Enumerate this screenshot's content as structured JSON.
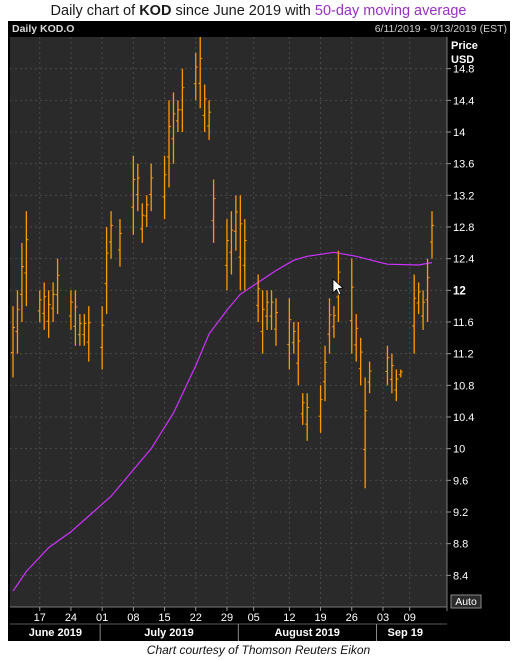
{
  "title": {
    "prefix": "Daily chart of ",
    "ticker": "KOD",
    "middle": " since June 2019 with ",
    "ma_label": "50-day moving average"
  },
  "header": {
    "instrument": "Daily KOD.O",
    "date_range": "6/11/2019 - 9/13/2019 (EST)"
  },
  "caption": "Chart courtesy of Thomson Reuters Eikon",
  "colors": {
    "bars": "#ff9900",
    "moving_average": "#cc33ff",
    "plot_background": "#2a2a2a",
    "frame": "#000000"
  },
  "chart_data": {
    "type": "ohlc",
    "price_axis_label": "Price",
    "currency_label": "USD",
    "ylim": [
      8.0,
      15.2
    ],
    "y_ticks": [
      "14.8",
      "14.4",
      "14",
      "13.6",
      "13.2",
      "12.8",
      "12.4",
      "12",
      "11.6",
      "11.2",
      "10.8",
      "10.4",
      "10",
      "9.6",
      "9.2",
      "8.8",
      "8.4"
    ],
    "y_highlight": "12",
    "autoscale_label": "Auto",
    "x_day_ticks": [
      {
        "day": 17,
        "label": "17"
      },
      {
        "day": 24,
        "label": "24"
      },
      {
        "day": 31,
        "label": "01"
      },
      {
        "day": 38,
        "label": "08"
      },
      {
        "day": 45,
        "label": "15"
      },
      {
        "day": 52,
        "label": "22"
      },
      {
        "day": 59,
        "label": "29"
      },
      {
        "day": 65,
        "label": "05"
      },
      {
        "day": 73,
        "label": "12"
      },
      {
        "day": 80,
        "label": "19"
      },
      {
        "day": 87,
        "label": "26"
      },
      {
        "day": 94,
        "label": "03"
      },
      {
        "day": 100,
        "label": "09"
      }
    ],
    "months": [
      {
        "label": "June 2019",
        "from": 11,
        "to": 30
      },
      {
        "label": "July 2019",
        "from": 31,
        "to": 61
      },
      {
        "label": "August 2019",
        "from": 62,
        "to": 92
      },
      {
        "label": "Sep 19",
        "from": 93,
        "to": 105
      }
    ],
    "bars": [
      {
        "date": "2019-06-11",
        "high": 11.8,
        "low": 10.9
      },
      {
        "date": "2019-06-12",
        "high": 12.0,
        "low": 11.2
      },
      {
        "date": "2019-06-13",
        "high": 12.6,
        "low": 11.6
      },
      {
        "date": "2019-06-14",
        "high": 13.0,
        "low": 11.8
      },
      {
        "date": "2019-06-17",
        "high": 12.0,
        "low": 11.6
      },
      {
        "date": "2019-06-18",
        "high": 12.1,
        "low": 11.5
      },
      {
        "date": "2019-06-19",
        "high": 12.0,
        "low": 11.4
      },
      {
        "date": "2019-06-20",
        "high": 12.1,
        "low": 11.6
      },
      {
        "date": "2019-06-21",
        "high": 12.4,
        "low": 11.7
      },
      {
        "date": "2019-06-24",
        "high": 12.0,
        "low": 11.5
      },
      {
        "date": "2019-06-25",
        "high": 12.0,
        "low": 11.3
      },
      {
        "date": "2019-06-26",
        "high": 11.7,
        "low": 11.3
      },
      {
        "date": "2019-06-27",
        "high": 11.7,
        "low": 11.3
      },
      {
        "date": "2019-06-28",
        "high": 11.8,
        "low": 11.1
      },
      {
        "date": "2019-07-01",
        "high": 11.8,
        "low": 11.0
      },
      {
        "date": "2019-07-02",
        "high": 12.8,
        "low": 11.7
      },
      {
        "date": "2019-07-03",
        "high": 13.0,
        "low": 12.4
      },
      {
        "date": "2019-07-05",
        "high": 12.9,
        "low": 12.3
      },
      {
        "date": "2019-07-08",
        "high": 13.7,
        "low": 12.7
      },
      {
        "date": "2019-07-09",
        "high": 13.6,
        "low": 13.0
      },
      {
        "date": "2019-07-10",
        "high": 13.1,
        "low": 12.6
      },
      {
        "date": "2019-07-11",
        "high": 13.2,
        "low": 12.8
      },
      {
        "date": "2019-07-12",
        "high": 13.6,
        "low": 13.0
      },
      {
        "date": "2019-07-15",
        "high": 13.7,
        "low": 12.9
      },
      {
        "date": "2019-07-16",
        "high": 14.4,
        "low": 13.3
      },
      {
        "date": "2019-07-17",
        "high": 14.5,
        "low": 13.6
      },
      {
        "date": "2019-07-18",
        "high": 14.4,
        "low": 14.0
      },
      {
        "date": "2019-07-19",
        "high": 14.8,
        "low": 14.0
      },
      {
        "date": "2019-07-22",
        "high": 15.0,
        "low": 14.4
      },
      {
        "date": "2019-07-23",
        "high": 15.2,
        "low": 14.3
      },
      {
        "date": "2019-07-24",
        "high": 14.6,
        "low": 14.0
      },
      {
        "date": "2019-07-25",
        "high": 14.4,
        "low": 13.9
      },
      {
        "date": "2019-07-26",
        "high": 13.4,
        "low": 12.6
      },
      {
        "date": "2019-07-29",
        "high": 12.9,
        "low": 12.0
      },
      {
        "date": "2019-07-30",
        "high": 13.0,
        "low": 12.2
      },
      {
        "date": "2019-07-31",
        "high": 13.2,
        "low": 12.5
      },
      {
        "date": "2019-08-01",
        "high": 13.2,
        "low": 12.0
      },
      {
        "date": "2019-08-02",
        "high": 12.9,
        "low": 12.0
      },
      {
        "date": "2019-08-05",
        "high": 12.2,
        "low": 11.6
      },
      {
        "date": "2019-08-06",
        "high": 12.0,
        "low": 11.2
      },
      {
        "date": "2019-08-07",
        "high": 12.0,
        "low": 11.5
      },
      {
        "date": "2019-08-08",
        "high": 12.0,
        "low": 11.5
      },
      {
        "date": "2019-08-09",
        "high": 11.9,
        "low": 11.3
      },
      {
        "date": "2019-08-12",
        "high": 11.9,
        "low": 11.0
      },
      {
        "date": "2019-08-13",
        "high": 11.6,
        "low": 11.2
      },
      {
        "date": "2019-08-14",
        "high": 11.6,
        "low": 10.8
      },
      {
        "date": "2019-08-15",
        "high": 10.7,
        "low": 10.3
      },
      {
        "date": "2019-08-16",
        "high": 10.7,
        "low": 10.1
      },
      {
        "date": "2019-08-19",
        "high": 10.8,
        "low": 10.2
      },
      {
        "date": "2019-08-20",
        "high": 11.3,
        "low": 10.6
      },
      {
        "date": "2019-08-21",
        "high": 11.9,
        "low": 11.2
      },
      {
        "date": "2019-08-22",
        "high": 11.8,
        "low": 11.4
      },
      {
        "date": "2019-08-23",
        "high": 12.5,
        "low": 11.6
      },
      {
        "date": "2019-08-26",
        "high": 12.4,
        "low": 11.2
      },
      {
        "date": "2019-08-27",
        "high": 11.7,
        "low": 11.1
      },
      {
        "date": "2019-08-28",
        "high": 11.4,
        "low": 10.8
      },
      {
        "date": "2019-08-29",
        "high": 10.9,
        "low": 9.5
      },
      {
        "date": "2019-08-30",
        "high": 11.1,
        "low": 10.7
      },
      {
        "date": "2019-09-03",
        "high": 11.3,
        "low": 10.8
      },
      {
        "date": "2019-09-04",
        "high": 11.2,
        "low": 10.7
      },
      {
        "date": "2019-09-05",
        "high": 11.0,
        "low": 10.6
      },
      {
        "date": "2019-09-06",
        "high": 11.0,
        "low": 10.9
      },
      {
        "date": "2019-09-09",
        "high": 12.2,
        "low": 11.2
      },
      {
        "date": "2019-09-10",
        "high": 12.1,
        "low": 11.7
      },
      {
        "date": "2019-09-11",
        "high": 12.0,
        "low": 11.5
      },
      {
        "date": "2019-09-12",
        "high": 12.4,
        "low": 11.6
      },
      {
        "date": "2019-09-13",
        "high": 13.0,
        "low": 12.4
      }
    ],
    "moving_average": {
      "name": "50-day moving average",
      "points": [
        {
          "date": "2019-06-11",
          "value": 8.2
        },
        {
          "date": "2019-06-14",
          "value": 8.45
        },
        {
          "date": "2019-06-19",
          "value": 8.75
        },
        {
          "date": "2019-06-24",
          "value": 8.95
        },
        {
          "date": "2019-06-28",
          "value": 9.15
        },
        {
          "date": "2019-07-03",
          "value": 9.4
        },
        {
          "date": "2019-07-09",
          "value": 9.8
        },
        {
          "date": "2019-07-12",
          "value": 10.0
        },
        {
          "date": "2019-07-17",
          "value": 10.45
        },
        {
          "date": "2019-07-22",
          "value": 11.05
        },
        {
          "date": "2019-07-25",
          "value": 11.45
        },
        {
          "date": "2019-07-29",
          "value": 11.75
        },
        {
          "date": "2019-08-01",
          "value": 11.95
        },
        {
          "date": "2019-08-05",
          "value": 12.1
        },
        {
          "date": "2019-08-09",
          "value": 12.25
        },
        {
          "date": "2019-08-13",
          "value": 12.38
        },
        {
          "date": "2019-08-16",
          "value": 12.43
        },
        {
          "date": "2019-08-22",
          "value": 12.48
        },
        {
          "date": "2019-08-27",
          "value": 12.43
        },
        {
          "date": "2019-09-03",
          "value": 12.33
        },
        {
          "date": "2019-09-10",
          "value": 12.32
        },
        {
          "date": "2019-09-13",
          "value": 12.35
        }
      ]
    }
  }
}
